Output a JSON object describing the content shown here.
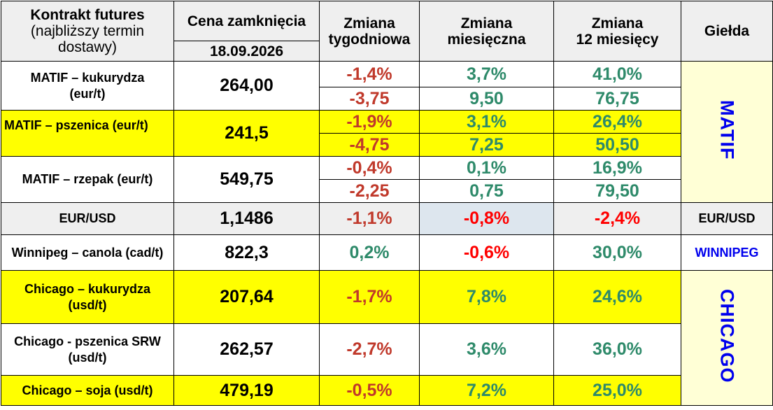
{
  "header": {
    "contract_title": "Kontrakt futures",
    "contract_sub1": "(najbliższy termin",
    "contract_sub2": "dostawy)",
    "close_price": "Cena zamknięcia",
    "date": "18.09.2026",
    "weekly_line1": "Zmiana",
    "weekly_line2": "tygodniowa",
    "monthly_line1": "Zmiana",
    "monthly_line2": "miesięczna",
    "yearly_line1": "Zmiana",
    "yearly_line2": "12 miesięcy",
    "exchange": "Giełda"
  },
  "rows": {
    "corn_matif": {
      "name1": "MATIF – kukurydza",
      "name2": "(eur/t)",
      "price": "264,00",
      "week_pct": "-1,4%",
      "month_pct": "3,7%",
      "year_pct": "41,0%",
      "week_abs": "-3,75",
      "month_abs": "9,50",
      "year_abs": "76,75"
    },
    "wheat_matif": {
      "name": "MATIF – pszenica (eur/t)",
      "price": "241,5",
      "week_pct": "-1,9%",
      "month_pct": "3,1%",
      "year_pct": "26,4%",
      "week_abs": "-4,75",
      "month_abs": "7,25",
      "year_abs": "50,50"
    },
    "rapeseed_matif": {
      "name": "MATIF – rzepak (eur/t)",
      "price": "549,75",
      "week_pct": "-0,4%",
      "month_pct": "0,1%",
      "year_pct": "16,9%",
      "week_abs": "-2,25",
      "month_abs": "0,75",
      "year_abs": "79,50"
    },
    "eurusd": {
      "name": "EUR/USD",
      "price": "1,1486",
      "week": "-1,1%",
      "month": "-0,8%",
      "year": "-2,4%",
      "exchange": "EUR/USD"
    },
    "canola": {
      "name": "Winnipeg – canola (cad/t)",
      "price": "822,3",
      "week": "0,2%",
      "month": "-0,6%",
      "year": "30,0%",
      "exchange": "WINNIPEG"
    },
    "corn_chicago": {
      "name1": "Chicago – kukurydza",
      "name2": "(usd/t)",
      "price": "207,64",
      "week": "-1,7%",
      "month": "7,8%",
      "year": "24,6%"
    },
    "wheat_chicago": {
      "name1": "Chicago - pszenica SRW",
      "name2": "(usd/t)",
      "price": "262,57",
      "week": "-2,7%",
      "month": "3,6%",
      "year": "36,0%"
    },
    "soy_chicago": {
      "name": "Chicago – soja (usd/t)",
      "price": "479,19",
      "week": "-0,5%",
      "month": "7,2%",
      "year": "25,0%"
    }
  },
  "exchanges": {
    "matif": "MATIF",
    "chicago": "CHICAGO"
  }
}
